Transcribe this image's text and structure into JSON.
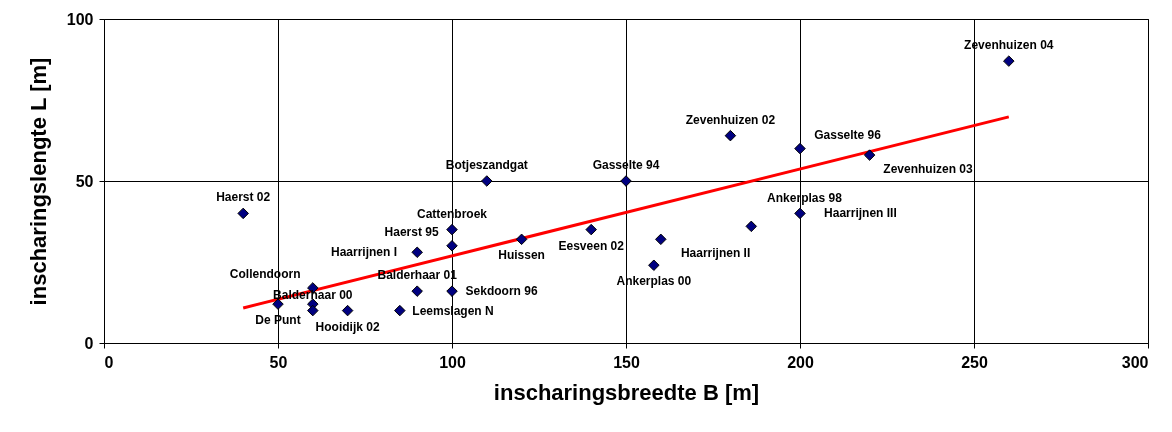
{
  "chart_data": {
    "type": "scatter",
    "xlabel": "inscharingsbreedte  B [m]",
    "ylabel": "inscharingslengte  L [m]",
    "xlim": [
      0,
      300
    ],
    "xticks": [
      0,
      50,
      100,
      150,
      200,
      250,
      300
    ],
    "ylim": [
      0,
      100
    ],
    "yticks": [
      0,
      50,
      100
    ],
    "grid": true,
    "series": [
      {
        "marker": "diamond",
        "color": "#000080",
        "x": [
          40,
          50,
          60,
          60,
          60,
          70,
          85,
          90,
          90,
          100,
          100,
          100,
          110,
          120,
          140,
          150,
          158,
          160,
          180,
          186,
          200,
          200,
          220,
          260
        ],
        "values": [
          40,
          12,
          17,
          12,
          10,
          10,
          10,
          16,
          28,
          35,
          30,
          16,
          50,
          32,
          35,
          50,
          24,
          32,
          64,
          36,
          60,
          40,
          58,
          87
        ]
      },
      {
        "type": "line",
        "color": "#ff0000",
        "x": [
          40,
          260
        ],
        "values": [
          10.8,
          69.8
        ]
      }
    ],
    "annotations": [
      {
        "text": "Haerst 02",
        "x": 40,
        "y": 40
      },
      {
        "text": "De Punt",
        "x": 50,
        "y": 12
      },
      {
        "text": "Collendoorn",
        "x": 60,
        "y": 17
      },
      {
        "text": "Balderhaar 00",
        "x": 60,
        "y": 10
      },
      {
        "text": "Hooidijk 02",
        "x": 70,
        "y": 10
      },
      {
        "text": "Leemslagen N",
        "x": 85,
        "y": 10
      },
      {
        "text": "Balderhaar 01",
        "x": 90,
        "y": 16
      },
      {
        "text": "Haarrijnen I",
        "x": 90,
        "y": 28
      },
      {
        "text": "Cattenbroek",
        "x": 100,
        "y": 35
      },
      {
        "text": "Haerst 95",
        "x": 100,
        "y": 30
      },
      {
        "text": "Sekdoorn 96",
        "x": 100,
        "y": 16
      },
      {
        "text": "Botjeszandgat",
        "x": 110,
        "y": 50
      },
      {
        "text": "Huissen",
        "x": 120,
        "y": 32
      },
      {
        "text": "Eesveen 02",
        "x": 140,
        "y": 35
      },
      {
        "text": "Gasselte 94",
        "x": 150,
        "y": 50
      },
      {
        "text": "Ankerplas 00",
        "x": 158,
        "y": 24
      },
      {
        "text": "Haarrijnen II",
        "x": 160,
        "y": 32
      },
      {
        "text": "Zevenhuizen 02",
        "x": 180,
        "y": 64
      },
      {
        "text": "Ankerplas 98",
        "x": 186,
        "y": 36
      },
      {
        "text": "Gasselte 96",
        "x": 200,
        "y": 60
      },
      {
        "text": "Haarrijnen III",
        "x": 200,
        "y": 40
      },
      {
        "text": "Zevenhuizen 03",
        "x": 220,
        "y": 58
      },
      {
        "text": "Zevenhuizen 04",
        "x": 260,
        "y": 87
      }
    ]
  }
}
